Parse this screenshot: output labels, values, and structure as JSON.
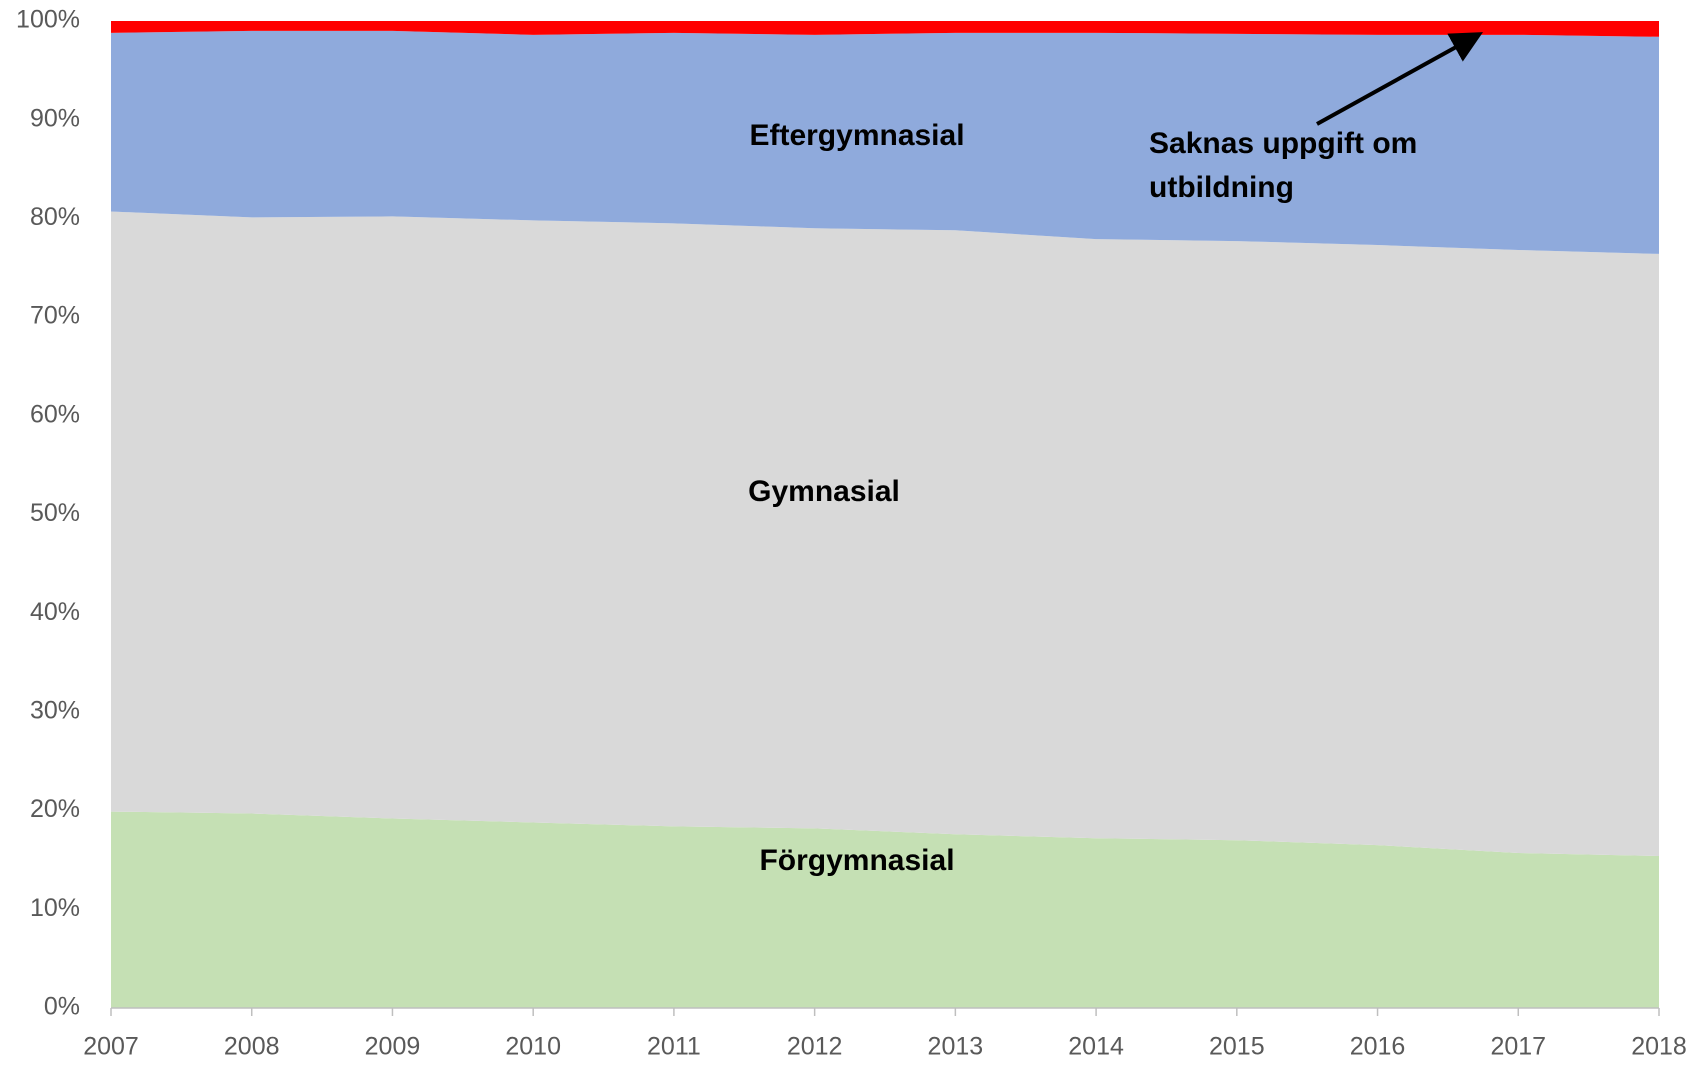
{
  "chart_data": {
    "type": "stacked_area",
    "x": [
      2007,
      2008,
      2009,
      2010,
      2011,
      2012,
      2013,
      2014,
      2015,
      2016,
      2017,
      2018
    ],
    "xlim": [
      2007,
      2018
    ],
    "xticks": [
      2007,
      2008,
      2009,
      2010,
      2011,
      2012,
      2013,
      2014,
      2015,
      2016,
      2017,
      2018
    ],
    "ylim": [
      0,
      100
    ],
    "yticks": [
      {
        "value": 0,
        "label": "0%"
      },
      {
        "value": 10,
        "label": "10%"
      },
      {
        "value": 20,
        "label": "20%"
      },
      {
        "value": 30,
        "label": "30%"
      },
      {
        "value": 40,
        "label": "40%"
      },
      {
        "value": 50,
        "label": "50%"
      },
      {
        "value": 60,
        "label": "60%"
      },
      {
        "value": 70,
        "label": "70%"
      },
      {
        "value": 80,
        "label": "80%"
      },
      {
        "value": 90,
        "label": "90%"
      },
      {
        "value": 100,
        "label": "100%"
      }
    ],
    "grid": false,
    "series": [
      {
        "name": "Förgymnasial",
        "color": "#c5e0b4",
        "values": [
          19.9,
          19.7,
          19.2,
          18.8,
          18.4,
          18.2,
          17.6,
          17.2,
          17.0,
          16.5,
          15.7,
          15.4
        ]
      },
      {
        "name": "Gymnasial",
        "color": "#d9d9d9",
        "values": [
          60.8,
          60.4,
          61.0,
          61.0,
          61.1,
          60.8,
          61.2,
          60.7,
          60.7,
          60.8,
          61.1,
          61.0
        ]
      },
      {
        "name": "Eftergymnasial",
        "color": "#8faadc",
        "values": [
          18.1,
          18.9,
          18.8,
          18.8,
          19.3,
          19.6,
          20.0,
          20.9,
          21.0,
          21.3,
          21.8,
          22.0
        ]
      },
      {
        "name": "Saknas uppgift om utbildning",
        "color": "#ff0000",
        "values": [
          1.2,
          1.0,
          1.0,
          1.4,
          1.2,
          1.4,
          1.2,
          1.2,
          1.3,
          1.4,
          1.4,
          1.6
        ]
      }
    ]
  }
}
